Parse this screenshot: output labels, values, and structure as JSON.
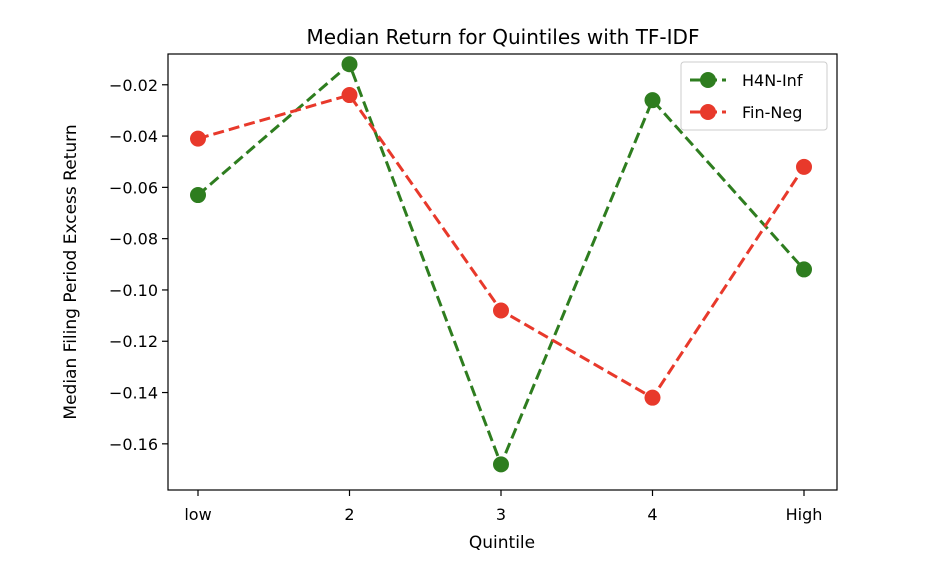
{
  "chart_data": {
    "type": "line",
    "title": "Median Return for Quintiles with TF-IDF",
    "xlabel": "Quintile",
    "ylabel": "Median Filing Period Excess Return",
    "categories": [
      "low",
      "2",
      "3",
      "4",
      "High"
    ],
    "ylim": [
      -0.178,
      -0.008
    ],
    "yticks": [
      -0.02,
      -0.04,
      -0.06,
      -0.08,
      -0.1,
      -0.12,
      -0.14,
      -0.16
    ],
    "ytick_labels": [
      "−0.02",
      "−0.04",
      "−0.06",
      "−0.08",
      "−0.10",
      "−0.12",
      "−0.14",
      "−0.16"
    ],
    "grid": false,
    "legend_position": "top-right",
    "series": [
      {
        "name": "H4N-Inf",
        "color": "#2e7d1f",
        "line_style": "dashed",
        "marker": "circle",
        "values": [
          -0.063,
          -0.012,
          -0.168,
          -0.026,
          -0.092
        ]
      },
      {
        "name": "Fin-Neg",
        "color": "#e8392b",
        "line_style": "dashed",
        "marker": "circle",
        "values": [
          -0.041,
          -0.024,
          -0.108,
          -0.142,
          -0.052
        ]
      }
    ]
  }
}
